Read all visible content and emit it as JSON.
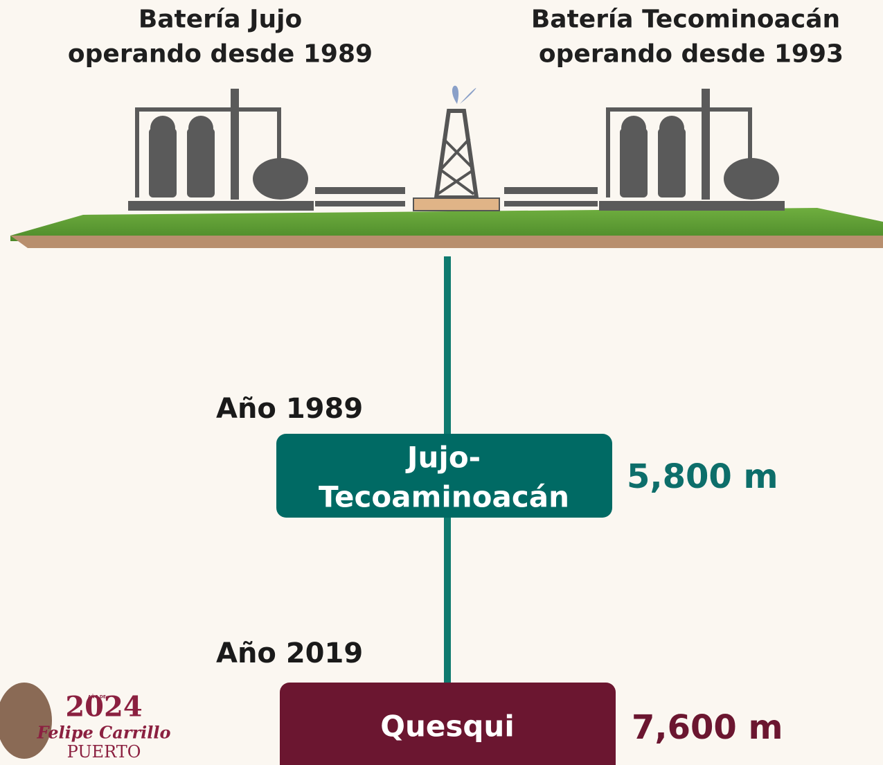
{
  "header": {
    "left": {
      "title": "Batería Jujo",
      "subtitle": "operando desde 1989"
    },
    "right": {
      "title": "Batería Tecominoacán",
      "subtitle": "operando desde 1993"
    }
  },
  "wells": [
    {
      "year": "Año 1989",
      "name_lines": [
        "Jujo-",
        "Tecoaminoacán"
      ],
      "depth": "5,800 m"
    },
    {
      "year": "Año 2019",
      "name_lines": [
        "Quesqui"
      ],
      "depth": "7,600 m"
    }
  ],
  "logo": {
    "year": "2024",
    "year_note": "AÑO DE",
    "name": "Felipe Carrillo",
    "place": "PUERTO"
  }
}
